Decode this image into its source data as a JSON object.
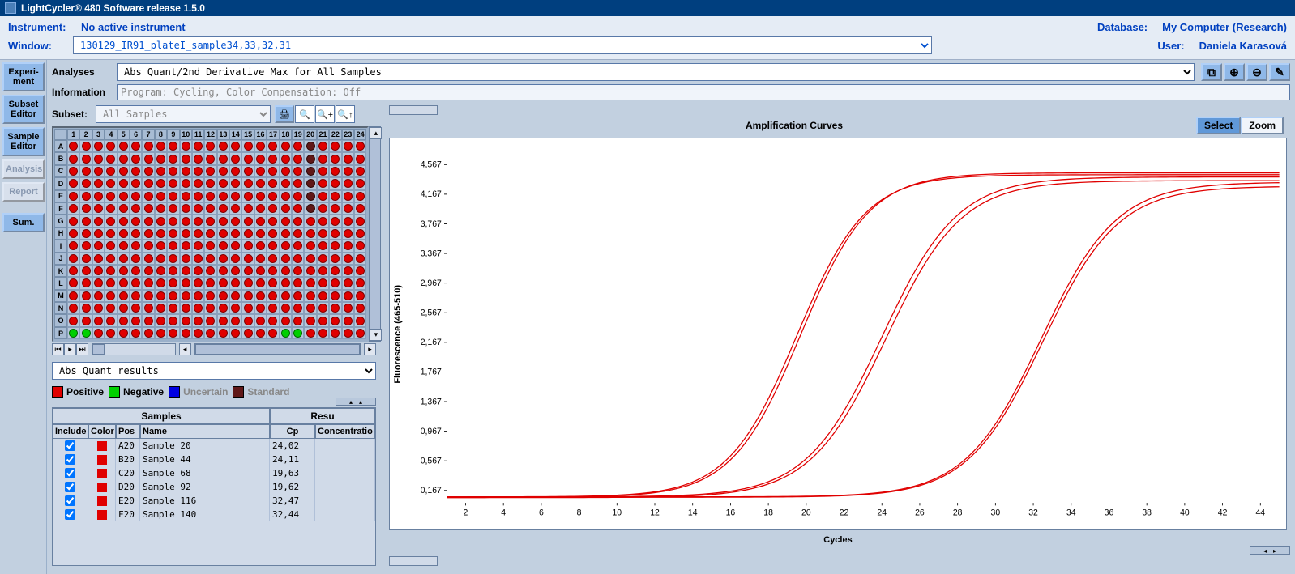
{
  "titlebar": "LightCycler® 480 Software release 1.5.0",
  "header": {
    "instrument_label": "Instrument:",
    "instrument_value": "No active instrument",
    "database_label": "Database:",
    "database_value": "My Computer (Research)",
    "window_label": "Window:",
    "window_value": "130129_IR91_plateI_sample34,33,32,31",
    "user_label": "User:",
    "user_value": "Daniela Karasová"
  },
  "tabs": {
    "experiment": "Experi-\nment",
    "subset_editor": "Subset\nEditor",
    "sample_editor": "Sample\nEditor",
    "analysis": "Analysis",
    "report": "Report",
    "sum": "Sum."
  },
  "analyses": {
    "label": "Analyses",
    "value": "Abs Quant/2nd Derivative Max for All Samples"
  },
  "information": {
    "label": "Information",
    "value": "Program: Cycling, Color Compensation: Off"
  },
  "subset": {
    "label": "Subset:",
    "value": "All Samples"
  },
  "plate": {
    "rows": [
      "A",
      "B",
      "C",
      "D",
      "E",
      "F",
      "G",
      "H",
      "I",
      "J",
      "K",
      "L",
      "M",
      "N",
      "O",
      "P"
    ],
    "cols": [
      "1",
      "2",
      "3",
      "4",
      "5",
      "6",
      "7",
      "8",
      "9",
      "10",
      "11",
      "12",
      "13",
      "14",
      "15",
      "16",
      "17",
      "18",
      "19",
      "20",
      "21",
      "22",
      "23",
      "24"
    ],
    "well_color_default": "#e00000",
    "special_wells": {
      "A20": "dark",
      "B20": "dark",
      "C20": "dark",
      "D20": "dark",
      "E20": "dark",
      "F20": "dark",
      "P1": "green",
      "P2": "green",
      "P18": "green",
      "P19": "green"
    }
  },
  "results_select": "Abs Quant results",
  "legend": {
    "positive": "Positive",
    "negative": "Negative",
    "uncertain": "Uncertain",
    "standard": "Standard",
    "colors": {
      "positive": "#e00000",
      "negative": "#00d000",
      "uncertain": "#0000e0",
      "standard": "#601818"
    }
  },
  "table": {
    "group_samples": "Samples",
    "group_results": "Resu",
    "headers": {
      "include": "Include",
      "color": "Color",
      "pos": "Pos",
      "name": "Name",
      "cp": "Cp",
      "conc": "Concentratio"
    },
    "rows": [
      {
        "include": true,
        "color": "#e00000",
        "pos": "A20",
        "name": "Sample 20",
        "cp": "24,02",
        "conc": ""
      },
      {
        "include": true,
        "color": "#e00000",
        "pos": "B20",
        "name": "Sample 44",
        "cp": "24,11",
        "conc": ""
      },
      {
        "include": true,
        "color": "#e00000",
        "pos": "C20",
        "name": "Sample 68",
        "cp": "19,63",
        "conc": ""
      },
      {
        "include": true,
        "color": "#e00000",
        "pos": "D20",
        "name": "Sample 92",
        "cp": "19,62",
        "conc": ""
      },
      {
        "include": true,
        "color": "#e00000",
        "pos": "E20",
        "name": "Sample 116",
        "cp": "32,47",
        "conc": ""
      },
      {
        "include": true,
        "color": "#e00000",
        "pos": "F20",
        "name": "Sample 140",
        "cp": "32,44",
        "conc": ""
      }
    ]
  },
  "chart": {
    "title": "Amplification Curves",
    "select_btn": "Select",
    "zoom_btn": "Zoom",
    "y_label": "Fluorescence (465-510)",
    "x_label": "Cycles",
    "y_ticks": [
      "0,167",
      "0,567",
      "0,967",
      "1,367",
      "1,767",
      "2,167",
      "2,567",
      "2,967",
      "3,367",
      "3,767",
      "4,167",
      "4,567"
    ],
    "y_range": [
      0,
      4800
    ],
    "x_ticks": [
      "2",
      "4",
      "6",
      "8",
      "10",
      "12",
      "14",
      "16",
      "18",
      "20",
      "22",
      "24",
      "26",
      "28",
      "30",
      "32",
      "34",
      "36",
      "38",
      "40",
      "42",
      "44"
    ],
    "x_range": [
      1,
      45
    ],
    "curve_color": "#e00000",
    "curves": [
      {
        "shift": 19.5,
        "amp": 4350,
        "steep": 0.55,
        "base": 80
      },
      {
        "shift": 19.7,
        "amp": 4380,
        "steep": 0.55,
        "base": 75
      },
      {
        "shift": 24.0,
        "amp": 4320,
        "steep": 0.5,
        "base": 80
      },
      {
        "shift": 24.2,
        "amp": 4280,
        "steep": 0.5,
        "base": 70
      },
      {
        "shift": 32.4,
        "amp": 4250,
        "steep": 0.5,
        "base": 80
      },
      {
        "shift": 32.5,
        "amp": 4200,
        "steep": 0.5,
        "base": 75
      }
    ]
  }
}
